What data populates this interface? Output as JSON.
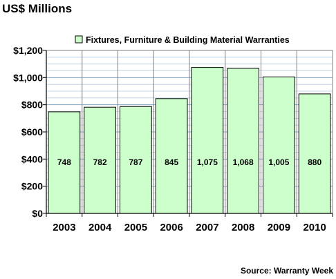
{
  "colors": {
    "bar_fill": "#ccffcc",
    "bar_stroke": "#000000",
    "grid_major": "#7fa7c9",
    "grid_minor": "#b7cfe3",
    "frame": "#808080"
  },
  "chart_data": {
    "type": "bar",
    "title": "US$ Millions",
    "categories": [
      "2003",
      "2004",
      "2005",
      "2006",
      "2007",
      "2008",
      "2009",
      "2010"
    ],
    "series": [
      {
        "name": "Fixtures, Furniture & Building Material Warranties",
        "values": [
          748,
          782,
          787,
          845,
          1075,
          1068,
          1005,
          880
        ]
      }
    ],
    "data_labels": [
      "748",
      "782",
      "787",
      "845",
      "1,075",
      "1,068",
      "1,005",
      "880"
    ],
    "yticks": [
      "$0",
      "$200",
      "$400",
      "$600",
      "$800",
      "$1,000",
      "$1,200"
    ],
    "ytick_values": [
      0,
      200,
      400,
      600,
      800,
      1000,
      1200
    ],
    "ylim": [
      0,
      1200
    ],
    "minor_step": 50,
    "xlabel": "",
    "ylabel": "",
    "grid": true,
    "legend_position": "top",
    "source": "Source: Warranty Week"
  }
}
